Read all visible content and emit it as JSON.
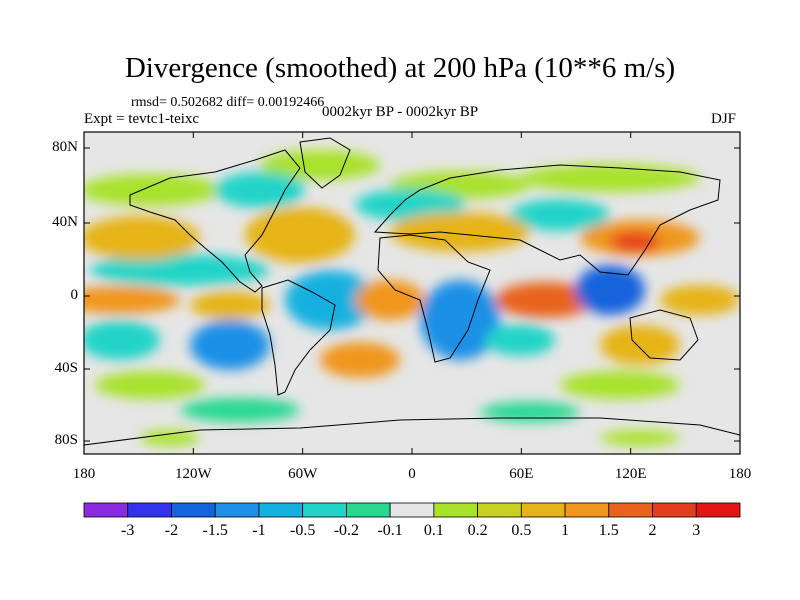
{
  "header": {
    "title": "Divergence (smoothed) at 200 hPa (10**6 m/s)",
    "stats": "rmsd= 0.502682 diff= 0.00192466",
    "experiment": "Expt = tevtc1-teixc",
    "period": "0002kyr BP - 0002kyr BP",
    "season": "DJF"
  },
  "map": {
    "lat_ticks": [
      "80N",
      "40N",
      "0",
      "40S",
      "80S"
    ],
    "lon_ticks": [
      "180",
      "120W",
      "60W",
      "0",
      "60E",
      "120E",
      "180"
    ],
    "background_color": "#e6e6e6"
  },
  "colorbar": {
    "colors": [
      "#8a2be2",
      "#3333ee",
      "#1464dc",
      "#1e90e6",
      "#14b0e0",
      "#20d4c8",
      "#28d890",
      "#e6e6e6",
      "#a8e22a",
      "#c8d21e",
      "#e6b414",
      "#f0961e",
      "#e8641e",
      "#e63c1e",
      "#e61414"
    ],
    "labels": [
      "-3",
      "-2",
      "-1.5",
      "-1",
      "-0.5",
      "-0.2",
      "-0.1",
      "0.1",
      "0.2",
      "0.5",
      "1",
      "1.5",
      "2",
      "3"
    ]
  }
}
